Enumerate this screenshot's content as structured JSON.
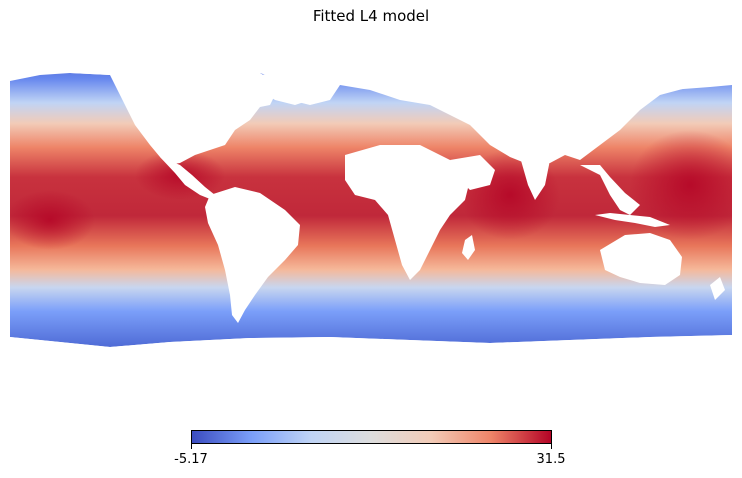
{
  "title": "Fitted L4 model",
  "colorbar": {
    "min_label": "-5.17",
    "max_label": "31.5",
    "min": -5.17,
    "max": 31.5,
    "colormap": "coolwarm",
    "stops": [
      "#3b4cc0",
      "#7b9ff9",
      "#c0d4f5",
      "#dddddd",
      "#f2cbb7",
      "#ee8468",
      "#b40426"
    ]
  },
  "map": {
    "projection": "equirectangular",
    "land_color": "#ffffff",
    "variable_range": [
      -5.17,
      31.5
    ]
  }
}
